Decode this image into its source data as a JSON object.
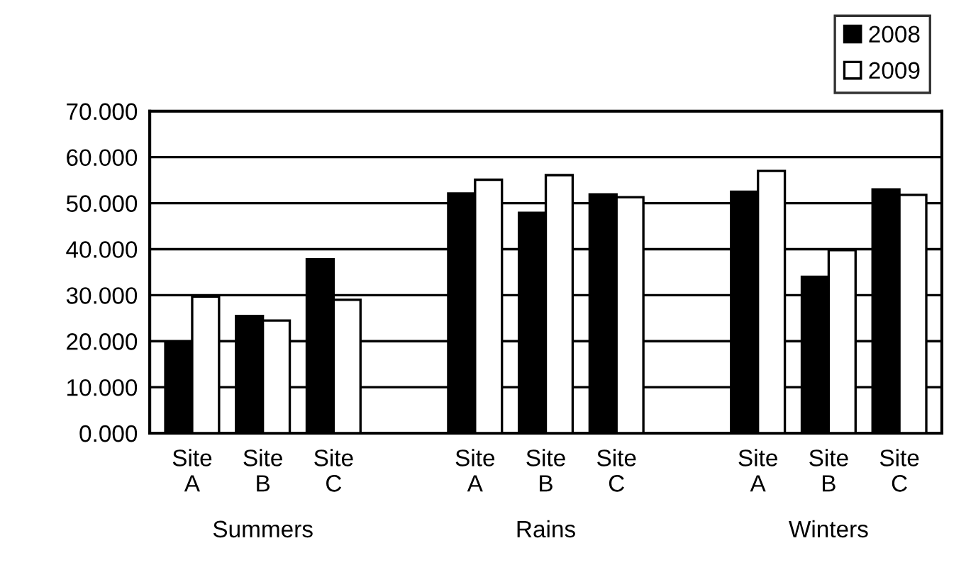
{
  "chart_data": {
    "type": "bar",
    "categories": [
      "Site\nA",
      "Site\nB",
      "Site\nC",
      null,
      "Site\nA",
      "Site\nB",
      "Site\nC",
      null,
      "Site\nA",
      "Site\nB",
      "Site\nC"
    ],
    "series": [
      {
        "name": "2008",
        "color": "#000000",
        "values": [
          19.6,
          25.5,
          37.8,
          null,
          52.1,
          47.9,
          51.9,
          null,
          52.5,
          34.0,
          53.0
        ]
      },
      {
        "name": "2009",
        "color": "#ffffff",
        "values": [
          29.7,
          24.5,
          29.0,
          null,
          55.1,
          56.1,
          51.3,
          null,
          57.0,
          39.8,
          51.8
        ]
      }
    ],
    "annotations": [
      "Summers",
      "Rains",
      "Winters"
    ],
    "ylim": [
      0,
      70
    ],
    "yticks": [
      {
        "value": 0,
        "label": "0.000"
      },
      {
        "value": 10,
        "label": "10.000"
      },
      {
        "value": 20,
        "label": "20.000"
      },
      {
        "value": 30,
        "label": "30.000"
      },
      {
        "value": 40,
        "label": "40.000"
      },
      {
        "value": 50,
        "label": "50.000"
      },
      {
        "value": 60,
        "label": "60.000"
      },
      {
        "value": 70,
        "label": "70.000"
      }
    ],
    "grid": "y",
    "legend": "top right"
  }
}
